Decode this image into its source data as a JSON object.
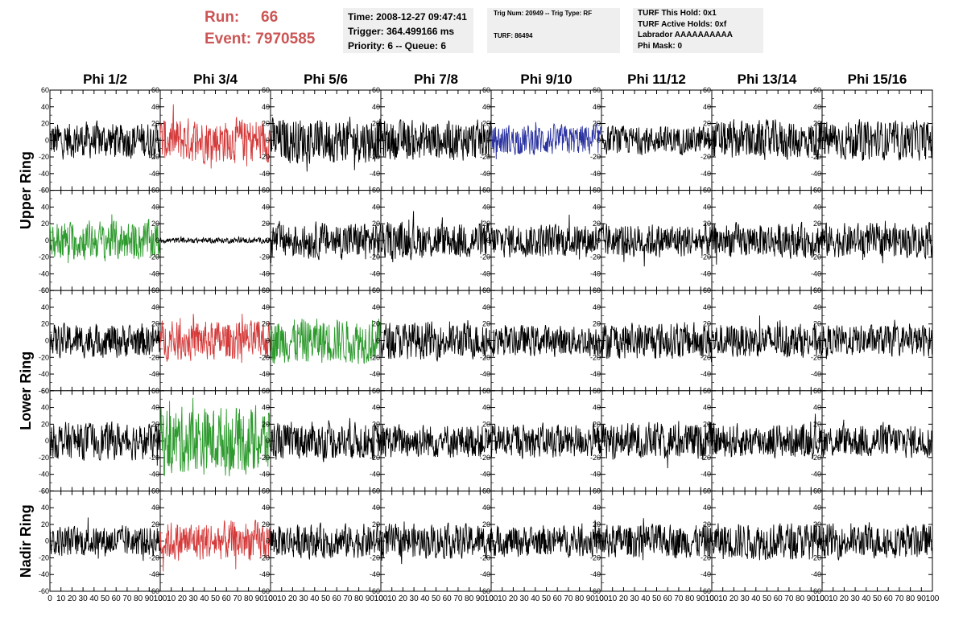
{
  "header": {
    "run_label": "Run:",
    "run_value": "66",
    "event_label": "Event:",
    "event_value": "7970585"
  },
  "info_box_1": {
    "time": "Time: 2008-12-27 09:47:41",
    "trigger": "Trigger: 364.499166 ms",
    "priority_queue": "Priority: 6 -- Queue: 6"
  },
  "info_box_2": {
    "trig": "Trig Num: 20949 -- Trig Type: RF",
    "turf": "TURF: 86494"
  },
  "info_box_3": {
    "this_hold": "TURF This Hold: 0x1",
    "active_holds": "TURF Active Holds: 0xf",
    "labrador": "Labrador AAAAAAAAAA",
    "phi_mask": "Phi Mask: 0"
  },
  "colors": {
    "black": "#000000",
    "red": "#d43a3a",
    "green": "#2c9a2c",
    "blue": "#2a32a0"
  },
  "chart_data": {
    "type": "line",
    "columns": [
      "Phi 1/2",
      "Phi 3/4",
      "Phi 5/6",
      "Phi 7/8",
      "Phi 9/10",
      "Phi 11/12",
      "Phi 13/14",
      "Phi 15/16"
    ],
    "ring_labels": [
      {
        "name": "Upper Ring",
        "rows": [
          0,
          1
        ]
      },
      {
        "name": "Lower Ring",
        "rows": [
          2,
          3
        ]
      },
      {
        "name": "Nadir Ring",
        "rows": [
          4,
          4
        ]
      }
    ],
    "xlim": [
      0,
      100
    ],
    "ylim": [
      -60,
      60
    ],
    "x_ticks": [
      "0",
      "10",
      "20",
      "30",
      "40",
      "50",
      "60",
      "70",
      "80",
      "90",
      "100"
    ],
    "y_ticks": [
      "60",
      "40",
      "20",
      "0",
      "-20",
      "-40",
      "-60"
    ],
    "trace_x_range": [
      0,
      100
    ],
    "panels": [
      [
        "black",
        "red",
        "black",
        "black",
        "blue",
        "black",
        "black",
        "black"
      ],
      [
        "green",
        "black",
        "black",
        "black",
        "black",
        "black",
        "black",
        "black"
      ],
      [
        "black",
        "red",
        "green",
        "black",
        "black",
        "black",
        "black",
        "black"
      ],
      [
        "black",
        "green",
        "black",
        "black",
        "black",
        "black",
        "black",
        "black"
      ],
      [
        "black",
        "red",
        "black",
        "black",
        "black",
        "black",
        "black",
        "black"
      ]
    ],
    "amplitudes": [
      [
        13,
        16,
        16,
        14,
        11,
        10,
        14,
        14
      ],
      [
        14,
        2,
        13,
        13,
        12,
        12,
        12,
        12
      ],
      [
        12,
        14,
        16,
        13,
        11,
        13,
        12,
        11
      ],
      [
        13,
        24,
        13,
        12,
        12,
        13,
        12,
        12
      ],
      [
        11,
        14,
        12,
        12,
        11,
        12,
        13,
        12
      ]
    ]
  }
}
